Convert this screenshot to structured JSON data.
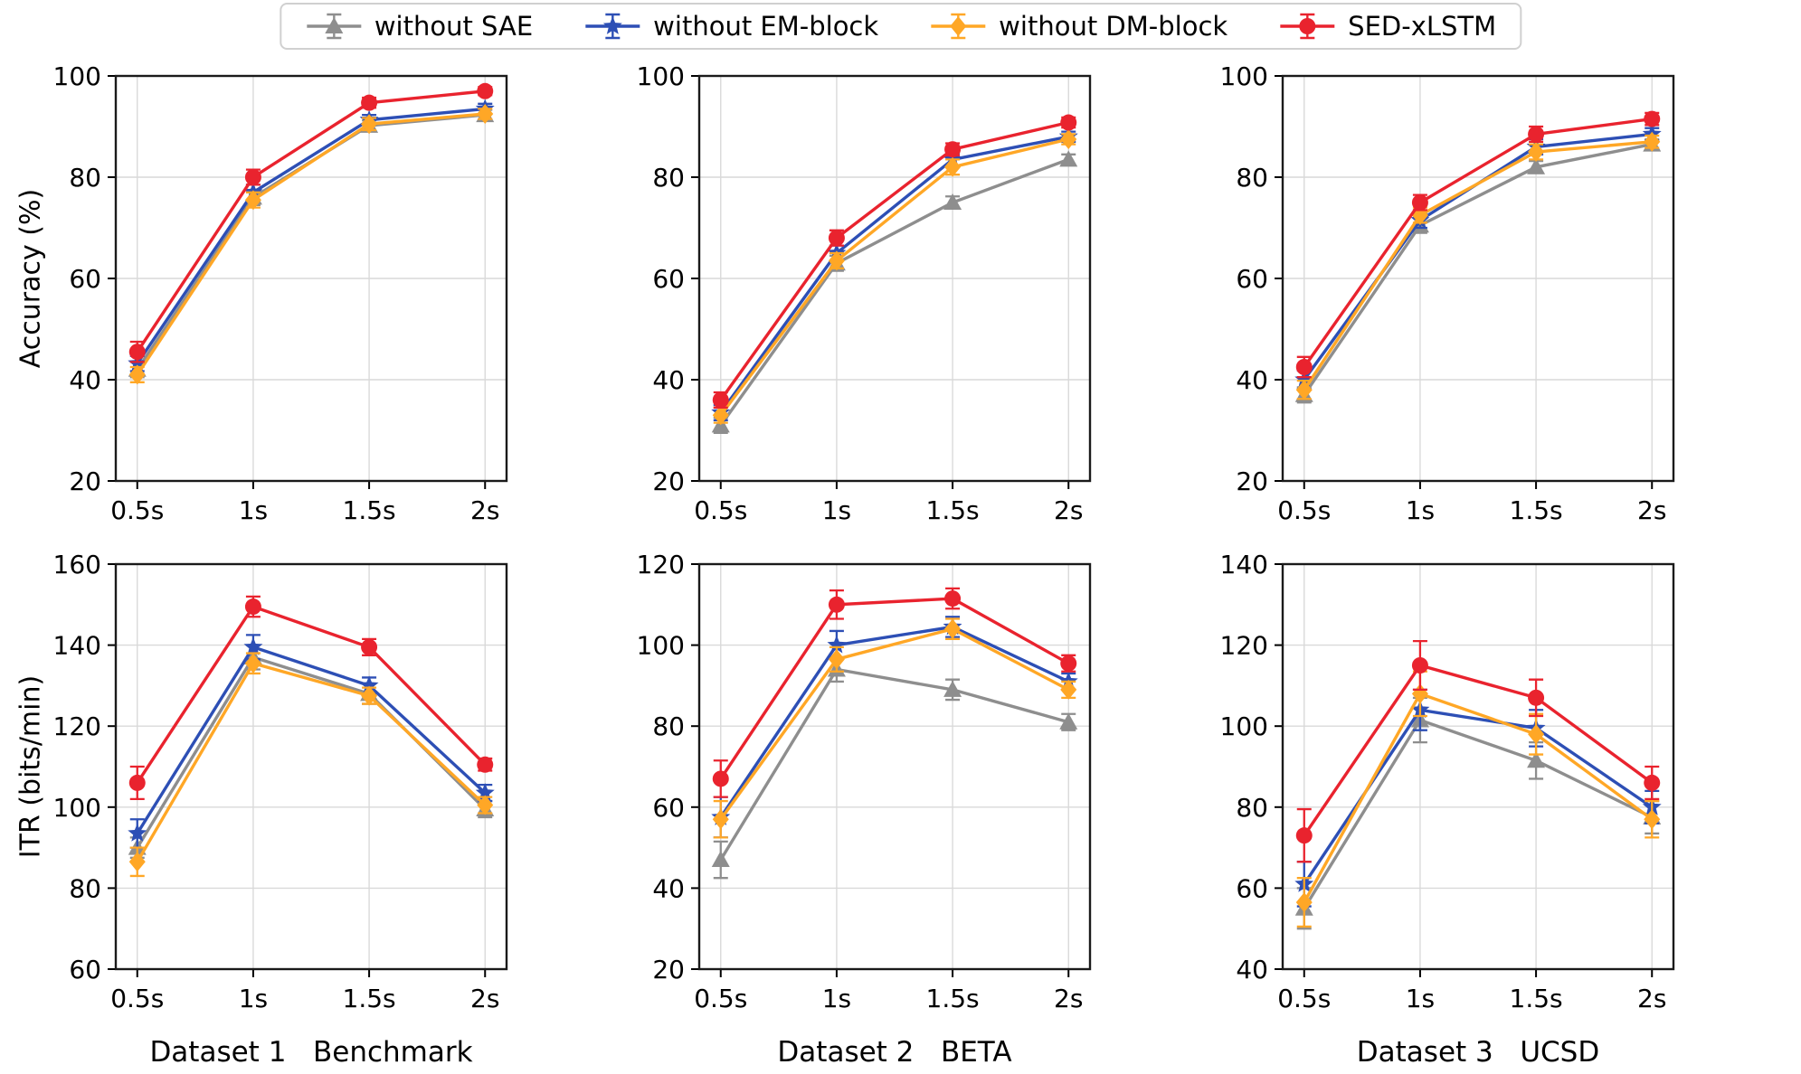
{
  "legend": {
    "items": [
      {
        "label": "without SAE",
        "color": "#8e8e8e",
        "marker": "triangle"
      },
      {
        "label": "without EM-block",
        "color": "#2d4fb5",
        "marker": "star"
      },
      {
        "label": "without DM-block",
        "color": "#ffa726",
        "marker": "diamond"
      },
      {
        "label": "SED-xLSTM",
        "color": "#e9232e",
        "marker": "circle"
      }
    ]
  },
  "axes": {
    "top_ylabel": "Accuracy (%)",
    "bottom_ylabel": "ITR (bits/min)"
  },
  "captions": [
    "Dataset 1   Benchmark",
    "Dataset 2   BETA",
    "Dataset 3   UCSD"
  ],
  "chart_data": [
    {
      "type": "line",
      "group": "Dataset 1 Benchmark",
      "ylabel": "Accuracy (%)",
      "x": [
        "0.5s",
        "1s",
        "1.5s",
        "2s"
      ],
      "ylim": [
        20,
        100
      ],
      "yticks": [
        20,
        40,
        60,
        80,
        100
      ],
      "grid": true,
      "series": [
        {
          "name": "without SAE",
          "color": "#8e8e8e",
          "marker": "triangle",
          "values": [
            42.0,
            76.0,
            90.2,
            92.3
          ],
          "errors": [
            1.5,
            1.5,
            1.0,
            1.0
          ]
        },
        {
          "name": "without EM-block",
          "color": "#2d4fb5",
          "marker": "star",
          "values": [
            43.2,
            77.0,
            91.3,
            93.5
          ],
          "errors": [
            1.5,
            1.5,
            1.0,
            1.0
          ]
        },
        {
          "name": "without DM-block",
          "color": "#ffa726",
          "marker": "diamond",
          "values": [
            41.0,
            75.5,
            90.5,
            92.5
          ],
          "errors": [
            1.5,
            1.5,
            1.2,
            1.0
          ]
        },
        {
          "name": "SED-xLSTM",
          "color": "#e9232e",
          "marker": "circle",
          "values": [
            45.5,
            80.0,
            94.7,
            97.0
          ],
          "errors": [
            2.0,
            1.5,
            1.0,
            0.8
          ]
        }
      ]
    },
    {
      "type": "line",
      "group": "Dataset 2 BETA",
      "ylabel": "Accuracy (%)",
      "x": [
        "0.5s",
        "1s",
        "1.5s",
        "2s"
      ],
      "ylim": [
        20,
        100
      ],
      "yticks": [
        20,
        40,
        60,
        80,
        100
      ],
      "grid": true,
      "series": [
        {
          "name": "without SAE",
          "color": "#8e8e8e",
          "marker": "triangle",
          "values": [
            31.0,
            63.0,
            75.0,
            83.5
          ],
          "errors": [
            1.5,
            1.5,
            1.2,
            1.0
          ]
        },
        {
          "name": "without EM-block",
          "color": "#2d4fb5",
          "marker": "star",
          "values": [
            33.5,
            65.0,
            83.5,
            88.0
          ],
          "errors": [
            1.5,
            1.5,
            1.2,
            1.0
          ]
        },
        {
          "name": "without DM-block",
          "color": "#ffa726",
          "marker": "diamond",
          "values": [
            33.0,
            63.5,
            82.0,
            87.5
          ],
          "errors": [
            1.5,
            1.5,
            1.5,
            1.0
          ]
        },
        {
          "name": "SED-xLSTM",
          "color": "#e9232e",
          "marker": "circle",
          "values": [
            36.0,
            68.0,
            85.5,
            90.8
          ],
          "errors": [
            1.5,
            1.5,
            1.2,
            1.0
          ]
        }
      ]
    },
    {
      "type": "line",
      "group": "Dataset 3 UCSD",
      "ylabel": "Accuracy (%)",
      "x": [
        "0.5s",
        "1s",
        "1.5s",
        "2s"
      ],
      "ylim": [
        20,
        100
      ],
      "yticks": [
        20,
        40,
        60,
        80,
        100
      ],
      "grid": true,
      "series": [
        {
          "name": "without SAE",
          "color": "#8e8e8e",
          "marker": "triangle",
          "values": [
            37.0,
            70.5,
            82.0,
            86.5
          ],
          "errors": [
            1.5,
            1.5,
            1.2,
            1.0
          ]
        },
        {
          "name": "without EM-block",
          "color": "#2d4fb5",
          "marker": "star",
          "values": [
            40.0,
            71.5,
            86.0,
            88.5
          ],
          "errors": [
            1.8,
            1.5,
            1.5,
            1.2
          ]
        },
        {
          "name": "without DM-block",
          "color": "#ffa726",
          "marker": "diamond",
          "values": [
            38.0,
            72.5,
            85.0,
            87.0
          ],
          "errors": [
            1.8,
            1.5,
            1.5,
            1.2
          ]
        },
        {
          "name": "SED-xLSTM",
          "color": "#e9232e",
          "marker": "circle",
          "values": [
            42.5,
            75.0,
            88.5,
            91.5
          ],
          "errors": [
            2.0,
            1.5,
            1.5,
            1.2
          ]
        }
      ]
    },
    {
      "type": "line",
      "group": "Dataset 1 Benchmark",
      "ylabel": "ITR (bits/min)",
      "x": [
        "0.5s",
        "1s",
        "1.5s",
        "2s"
      ],
      "ylim": [
        60,
        160
      ],
      "yticks": [
        60,
        80,
        100,
        120,
        140,
        160
      ],
      "grid": true,
      "series": [
        {
          "name": "without SAE",
          "color": "#8e8e8e",
          "marker": "triangle",
          "values": [
            90.0,
            137.0,
            128.0,
            99.5
          ],
          "errors": [
            2.5,
            3.0,
            2.5,
            2.0
          ]
        },
        {
          "name": "without EM-block",
          "color": "#2d4fb5",
          "marker": "star",
          "values": [
            93.5,
            139.5,
            130.0,
            103.5
          ],
          "errors": [
            3.5,
            3.0,
            2.0,
            2.0
          ]
        },
        {
          "name": "without DM-block",
          "color": "#ffa726",
          "marker": "diamond",
          "values": [
            86.5,
            135.5,
            127.5,
            100.5
          ],
          "errors": [
            3.5,
            2.5,
            2.0,
            2.0
          ]
        },
        {
          "name": "SED-xLSTM",
          "color": "#e9232e",
          "marker": "circle",
          "values": [
            106.0,
            149.5,
            139.5,
            110.5
          ],
          "errors": [
            4.0,
            2.5,
            2.0,
            1.5
          ]
        }
      ]
    },
    {
      "type": "line",
      "group": "Dataset 2 BETA",
      "ylabel": "ITR (bits/min)",
      "x": [
        "0.5s",
        "1s",
        "1.5s",
        "2s"
      ],
      "ylim": [
        20,
        120
      ],
      "yticks": [
        20,
        40,
        60,
        80,
        100,
        120
      ],
      "grid": true,
      "series": [
        {
          "name": "without SAE",
          "color": "#8e8e8e",
          "marker": "triangle",
          "values": [
            47.0,
            94.0,
            89.0,
            81.0
          ],
          "errors": [
            4.5,
            3.0,
            2.5,
            2.0
          ]
        },
        {
          "name": "without EM-block",
          "color": "#2d4fb5",
          "marker": "star",
          "values": [
            57.5,
            100.0,
            104.5,
            91.0
          ],
          "errors": [
            5.0,
            3.5,
            2.5,
            2.0
          ]
        },
        {
          "name": "without DM-block",
          "color": "#ffa726",
          "marker": "diamond",
          "values": [
            57.0,
            96.5,
            104.0,
            89.0
          ],
          "errors": [
            4.5,
            3.0,
            2.5,
            2.0
          ]
        },
        {
          "name": "SED-xLSTM",
          "color": "#e9232e",
          "marker": "circle",
          "values": [
            67.0,
            110.0,
            111.5,
            95.5
          ],
          "errors": [
            4.5,
            3.5,
            2.5,
            2.0
          ]
        }
      ]
    },
    {
      "type": "line",
      "group": "Dataset 3 UCSD",
      "ylabel": "ITR (bits/min)",
      "x": [
        "0.5s",
        "1s",
        "1.5s",
        "2s"
      ],
      "ylim": [
        40,
        140
      ],
      "yticks": [
        40,
        60,
        80,
        100,
        120,
        140
      ],
      "grid": true,
      "series": [
        {
          "name": "without SAE",
          "color": "#8e8e8e",
          "marker": "triangle",
          "values": [
            55.0,
            101.5,
            91.5,
            77.5
          ],
          "errors": [
            5.0,
            5.5,
            4.5,
            4.0
          ]
        },
        {
          "name": "without EM-block",
          "color": "#2d4fb5",
          "marker": "star",
          "values": [
            61.0,
            104.0,
            99.5,
            80.0
          ],
          "errors": [
            5.5,
            5.0,
            4.5,
            4.0
          ]
        },
        {
          "name": "without DM-block",
          "color": "#ffa726",
          "marker": "diamond",
          "values": [
            56.5,
            108.0,
            98.0,
            77.0
          ],
          "errors": [
            6.0,
            5.5,
            5.0,
            4.5
          ]
        },
        {
          "name": "SED-xLSTM",
          "color": "#e9232e",
          "marker": "circle",
          "values": [
            73.0,
            115.0,
            107.0,
            86.0
          ],
          "errors": [
            6.5,
            6.0,
            4.5,
            4.0
          ]
        }
      ]
    }
  ]
}
